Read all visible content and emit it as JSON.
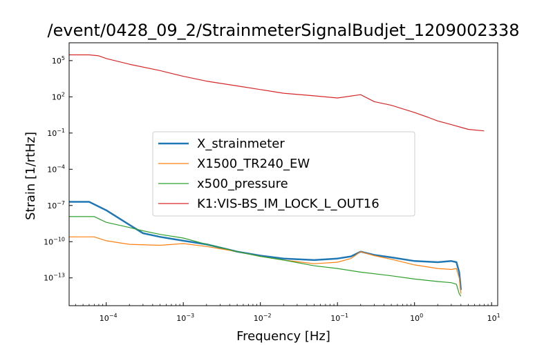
{
  "chart_data": {
    "type": "line",
    "title": "/event/0428_09_2/StrainmeterSignalBudjet_1209002338",
    "xlabel": "Frequency [Hz]",
    "ylabel": "Strain [1/rtHz]",
    "x_scale": "log",
    "y_scale": "log",
    "xlim": [
      3.3e-05,
      12
    ],
    "ylim": [
      5e-16,
      3000000.0
    ],
    "x_ticks": [
      {
        "base": "10",
        "exp": "−4",
        "value": 0.0001
      },
      {
        "base": "10",
        "exp": "−3",
        "value": 0.001
      },
      {
        "base": "10",
        "exp": "−2",
        "value": 0.01
      },
      {
        "base": "10",
        "exp": "−1",
        "value": 0.1
      },
      {
        "base": "10",
        "exp": "0",
        "value": 1
      },
      {
        "base": "10",
        "exp": "1",
        "value": 10
      }
    ],
    "y_ticks": [
      {
        "base": "10",
        "exp": "−13",
        "value": 1e-13
      },
      {
        "base": "10",
        "exp": "−10",
        "value": 1e-10
      },
      {
        "base": "10",
        "exp": "−7",
        "value": 1e-07
      },
      {
        "base": "10",
        "exp": "−4",
        "value": 0.0001
      },
      {
        "base": "10",
        "exp": "−1",
        "value": 0.1
      },
      {
        "base": "10",
        "exp": "2",
        "value": 100
      },
      {
        "base": "10",
        "exp": "5",
        "value": 100000
      }
    ],
    "grid": false,
    "legend_position": "center-left",
    "series": [
      {
        "name": "X_strainmeter",
        "color": "#1f77b4",
        "line_width": 2.5,
        "x": [
          3.3e-05,
          6e-05,
          0.0001,
          0.0002,
          0.0003,
          0.0005,
          0.001,
          0.002,
          0.005,
          0.01,
          0.02,
          0.05,
          0.1,
          0.15,
          0.2,
          0.3,
          0.5,
          1,
          2,
          3,
          3.5,
          3.8,
          4
        ],
        "y": [
          2e-07,
          2e-07,
          4e-08,
          2.5e-09,
          5e-10,
          2.5e-10,
          1.2e-10,
          6e-11,
          1.5e-11,
          7e-12,
          4e-12,
          3e-12,
          4e-12,
          6e-12,
          1.5e-11,
          8e-12,
          5e-12,
          2.5e-12,
          2e-12,
          2.5e-12,
          2e-12,
          3e-13,
          1e-14
        ]
      },
      {
        "name": "X1500_TR240_EW",
        "color": "#ff7f0e",
        "line_width": 1.2,
        "x": [
          3.3e-05,
          7e-05,
          0.0001,
          0.0002,
          0.0005,
          0.001,
          0.002,
          0.005,
          0.01,
          0.02,
          0.05,
          0.1,
          0.15,
          0.2,
          0.3,
          0.5,
          1,
          2,
          3,
          3.5,
          3.8,
          4
        ],
        "y": [
          2.5e-10,
          2.5e-10,
          1.2e-10,
          6e-11,
          5e-11,
          7e-11,
          4e-11,
          1.5e-11,
          6e-12,
          3e-12,
          1.5e-12,
          2e-12,
          4e-12,
          1.5e-11,
          7e-12,
          3.5e-12,
          1.2e-12,
          6e-13,
          5e-13,
          6e-13,
          1e-13,
          5e-15
        ]
      },
      {
        "name": "x500_pressure",
        "color": "#2ca02c",
        "line_width": 1.2,
        "x": [
          3.3e-05,
          7e-05,
          0.0001,
          0.0002,
          0.0003,
          0.0005,
          0.001,
          0.002,
          0.005,
          0.01,
          0.02,
          0.05,
          0.1,
          0.2,
          0.5,
          1,
          2,
          3,
          3.5,
          3.8,
          4
        ],
        "y": [
          1.2e-08,
          1.2e-08,
          4e-09,
          1.5e-09,
          8e-10,
          4e-10,
          2e-10,
          6e-11,
          1.5e-11,
          6e-12,
          3e-12,
          1e-12,
          6e-13,
          3e-13,
          1.5e-13,
          8e-14,
          5e-14,
          4e-14,
          3e-14,
          5e-15,
          3e-15
        ]
      },
      {
        "name": "K1:VIS-BS_IM_LOCK_L_OUT16",
        "color": "#d62728",
        "line_width": 1.2,
        "x": [
          3.3e-05,
          6e-05,
          8e-05,
          0.0001,
          0.0002,
          0.0005,
          0.001,
          0.002,
          0.005,
          0.01,
          0.02,
          0.05,
          0.1,
          0.2,
          0.3,
          0.5,
          1,
          1.5,
          2,
          3,
          4,
          5,
          8
        ],
        "y": [
          300000,
          300000,
          250000,
          150000,
          50000,
          15000,
          5000,
          2000,
          800,
          400,
          200,
          120,
          80,
          150,
          40,
          20,
          5,
          2,
          1,
          0.5,
          0.3,
          0.2,
          0.15
        ]
      }
    ]
  }
}
